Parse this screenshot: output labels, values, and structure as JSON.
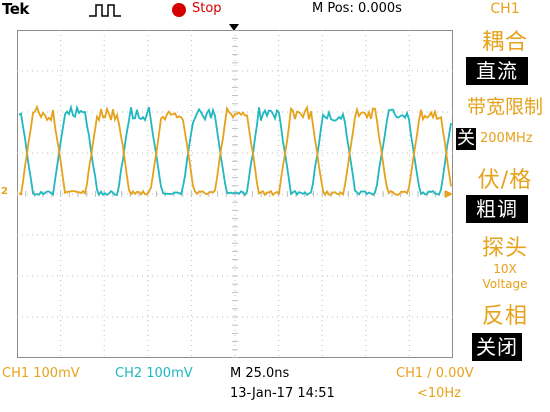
{
  "header": {
    "brand": "Tek",
    "trigger_icon": "pulse-trigger-icon",
    "acq_status_icon": "stop-dot-icon",
    "acq_status": "Stop",
    "m_pos": "M Pos: 0.000s"
  },
  "menu": {
    "title": "CH1",
    "coupling_label": "耦合",
    "coupling_value": "直流",
    "bw_limit_label": "带宽限制",
    "bw_limit_state": "关",
    "bw_limit_value": "200MHz",
    "volts_div_label": "伏/格",
    "volts_div_value": "粗调",
    "probe_label": "探头",
    "probe_attenuation": "10X",
    "probe_type": "Voltage",
    "invert_label": "反相",
    "invert_value": "关闭"
  },
  "markers": {
    "ch2_ground": "2"
  },
  "status": {
    "ch1_scale": "CH1  100mV",
    "ch2_scale": "CH2  100mV",
    "timebase": "M 25.0ns",
    "date_time": "13-Jan-17 14:51",
    "trigger": "CH1 ∕ 0.00V",
    "trigger_freq": "<10Hz"
  },
  "colors": {
    "ch1": "#e6a21a",
    "ch2": "#1fb7c0",
    "stop": "#d40000",
    "grid": "#bfbfbf"
  }
}
